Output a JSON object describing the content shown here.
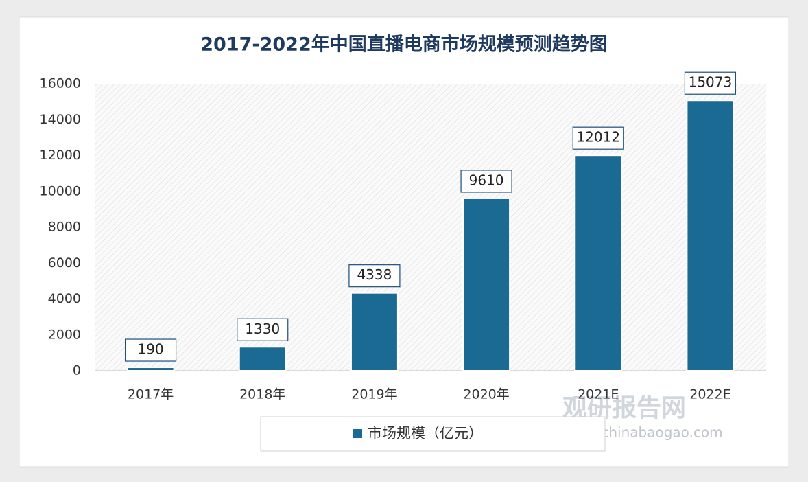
{
  "chart_data": {
    "type": "bar",
    "title": "2017-2022年中国直播电商市场规模预测趋势图",
    "categories": [
      "2017年",
      "2018年",
      "2019年",
      "2020年",
      "2021E",
      "2022E"
    ],
    "series": [
      {
        "name": "市场规模（亿元）",
        "color": "#1b6a93",
        "values": [
          190,
          1330,
          4338,
          9610,
          12012,
          15073
        ]
      }
    ],
    "ylim": [
      0,
      16000
    ],
    "yticks": [
      0,
      2000,
      4000,
      6000,
      8000,
      10000,
      12000,
      14000,
      16000
    ],
    "grid": false,
    "legend": "bottom"
  },
  "watermark": {
    "brand": "观研报告网",
    "url": "chinabaogao.com"
  }
}
